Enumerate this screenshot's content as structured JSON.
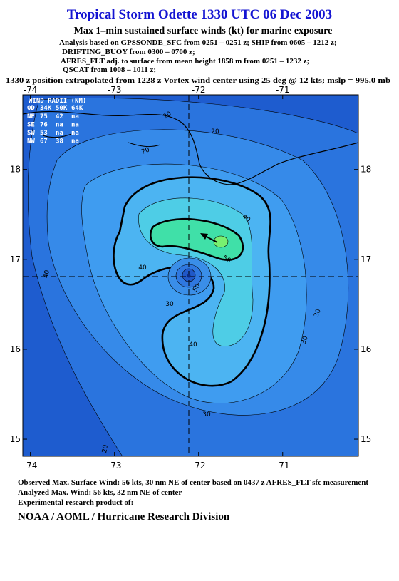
{
  "header": {
    "title": "Tropical Storm Odette 1330 UTC 06 Dec 2003",
    "subtitle": "Max 1–min sustained surface winds (kt) for marine exposure",
    "lines": [
      "Analysis based on  GPSSONDE_SFC from 0251 – 0251 z;  SHIP from 0605 – 1212 z;",
      "DRIFTING_BUOY from 0300 – 0700 z;",
      "AFRES_FLT adj. to surface from mean height 1858 m from 0251 – 1232 z;",
      "QSCAT from 1008 – 1011 z;",
      "1330 z position extrapolated from 1228 z Vortex wind center using 25 deg @ 12 kts; mslp = 995.0 mb"
    ]
  },
  "map": {
    "xlim": [
      -74.09,
      -70.1
    ],
    "ylim": [
      14.81,
      18.83
    ],
    "xticks": [
      -74,
      -73,
      -72,
      -71
    ],
    "yticks": [
      15,
      16,
      17,
      18
    ],
    "contour_labels": [
      "20",
      "20",
      "20",
      "30",
      "30",
      "30",
      "40",
      "40",
      "40",
      "40",
      "50",
      "50",
      "30",
      "20"
    ],
    "wind_radii": {
      "title": "WIND RADII (NM)",
      "columns": [
        "QD",
        "34K",
        "50K",
        "64K"
      ],
      "rows": [
        [
          "NE",
          75,
          42,
          "na"
        ],
        [
          "SE",
          76,
          "na",
          "na"
        ],
        [
          "SW",
          53,
          "na",
          "na"
        ],
        [
          "NW",
          67,
          38,
          "na"
        ]
      ]
    }
  },
  "footer": {
    "lines": [
      "Observed Max. Surface Wind: 56 kts, 30 nm NE of center based on 0437 z AFRES_FLT sfc measurement",
      "Analyzed Max. Wind: 56 kts, 32 nm NE of center",
      "Experimental research product of:"
    ],
    "org": "NOAA / AOML / Hurricane Research Division"
  }
}
